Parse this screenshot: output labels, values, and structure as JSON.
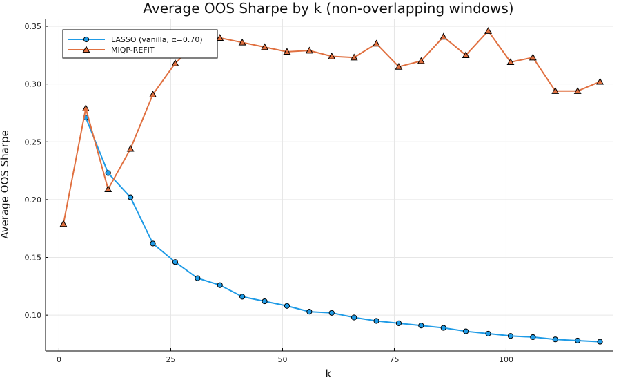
{
  "chart_data": {
    "type": "line",
    "title": "Average OOS Sharpe by k (non-overlapping windows)",
    "xlabel": "k",
    "ylabel": "Average OOS Sharpe",
    "xlim": [
      -3,
      124
    ],
    "ylim": [
      0.069,
      0.356
    ],
    "xticks": [
      0,
      25,
      50,
      75,
      100
    ],
    "yticks": [
      0.1,
      0.15,
      0.2,
      0.25,
      0.3,
      0.35
    ],
    "ytick_labels": [
      "0.10",
      "0.15",
      "0.20",
      "0.25",
      "0.30",
      "0.35"
    ],
    "grid": true,
    "legend_position": "top-left",
    "series": [
      {
        "name": "LASSO (vanilla, α=0.70)",
        "color": "#1f9be6",
        "marker": "circle",
        "x": [
          6,
          11,
          16,
          21,
          26,
          31,
          36,
          41,
          46,
          51,
          56,
          61,
          66,
          71,
          76,
          81,
          86,
          91,
          96,
          101,
          106,
          111,
          116,
          121
        ],
        "y": [
          0.271,
          0.223,
          0.202,
          0.162,
          0.146,
          0.132,
          0.126,
          0.116,
          0.112,
          0.108,
          0.103,
          0.102,
          0.098,
          0.095,
          0.093,
          0.091,
          0.089,
          0.086,
          0.084,
          0.082,
          0.081,
          0.079,
          0.078,
          0.077
        ]
      },
      {
        "name": "MIQP-REFIT",
        "color": "#e07040",
        "marker": "triangle",
        "x": [
          1,
          6,
          11,
          16,
          21,
          26,
          31,
          36,
          41,
          46,
          51,
          56,
          61,
          66,
          71,
          76,
          81,
          86,
          91,
          96,
          101,
          106,
          111,
          116,
          121
        ],
        "y": [
          0.179,
          0.279,
          0.209,
          0.244,
          0.291,
          0.318,
          0.336,
          0.34,
          0.336,
          0.332,
          0.328,
          0.329,
          0.324,
          0.323,
          0.335,
          0.315,
          0.32,
          0.341,
          0.325,
          0.346,
          0.319,
          0.323,
          0.294,
          0.294,
          0.302
        ]
      }
    ]
  }
}
